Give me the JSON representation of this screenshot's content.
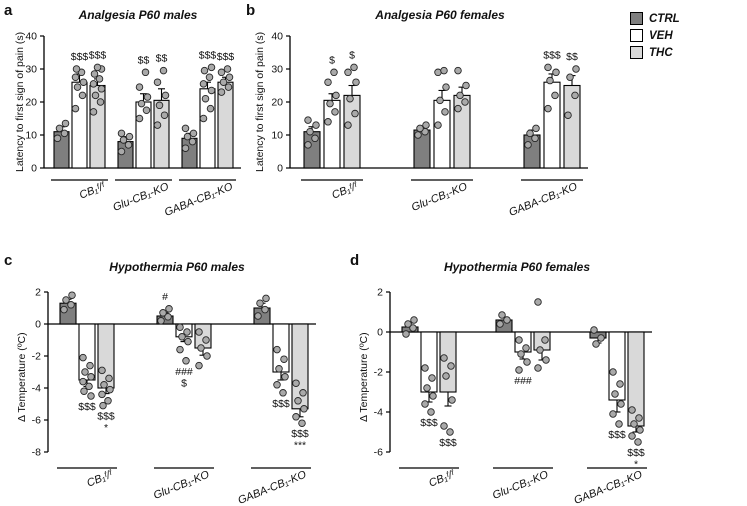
{
  "figure": {
    "background": "#ffffff"
  },
  "legend": {
    "items": [
      {
        "label": "CTRL",
        "color": "#7f7f7f"
      },
      {
        "label": "VEH",
        "color": "#ffffff"
      },
      {
        "label": "THC",
        "color": "#d9d9d9"
      }
    ]
  },
  "styles": {
    "point_fill": "#a9a9a9",
    "bar_stroke": "#000000",
    "axis_color": "#000000",
    "text_color": "#111111"
  },
  "chart_data": [
    {
      "panel_label": "a",
      "type": "bar",
      "title": "Analgesia P60 males",
      "ylabel": "Latency to first sign of pain (s)",
      "ylim": [
        0,
        40
      ],
      "yticks": [
        0,
        10,
        20,
        30,
        40
      ],
      "series": [
        "CTRL",
        "VEH",
        "THC"
      ],
      "groups": [
        {
          "label": "CB₁ᶠ/ᶠ",
          "bars": [
            {
              "series": "CTRL",
              "value": 11,
              "error": 1.5,
              "annotation": [],
              "points": [
                9,
                10.5,
                12,
                13.5
              ]
            },
            {
              "series": "VEH",
              "value": 26,
              "error": 2.5,
              "annotation": [
                "$$$"
              ],
              "points": [
                18,
                22,
                24.5,
                26,
                27.5,
                29,
                30
              ]
            },
            {
              "series": "THC",
              "value": 25,
              "error": 2,
              "annotation": [
                "$$$"
              ],
              "points": [
                17,
                20,
                22,
                24,
                25.5,
                27,
                28.5,
                30,
                30.5
              ]
            }
          ]
        },
        {
          "label": "Glu-CB₁-KO",
          "bars": [
            {
              "series": "CTRL",
              "value": 8,
              "error": 1.5,
              "annotation": [],
              "points": [
                5,
                7,
                8.5,
                9.5,
                10.5
              ]
            },
            {
              "series": "VEH",
              "value": 20,
              "error": 2.5,
              "annotation": [
                "$$"
              ],
              "points": [
                15,
                17.5,
                19.5,
                21.5,
                24.5,
                29
              ]
            },
            {
              "series": "THC",
              "value": 20.5,
              "error": 3.5,
              "annotation": [
                "$$"
              ],
              "points": [
                13,
                16,
                19,
                22,
                26,
                29.5
              ]
            }
          ]
        },
        {
          "label": "GABA-CB₁-KO",
          "bars": [
            {
              "series": "CTRL",
              "value": 9,
              "error": 1.5,
              "annotation": [],
              "points": [
                6,
                8,
                9.5,
                10.5,
                12
              ]
            },
            {
              "series": "VEH",
              "value": 24,
              "error": 2,
              "annotation": [
                "$$$"
              ],
              "points": [
                15,
                18,
                21,
                23.5,
                25.5,
                27.5,
                29.5,
                30.5
              ]
            },
            {
              "series": "THC",
              "value": 26,
              "error": 1.5,
              "annotation": [
                "$$$"
              ],
              "points": [
                23,
                24.5,
                26,
                27.5,
                29,
                30
              ]
            }
          ]
        }
      ]
    },
    {
      "panel_label": "b",
      "type": "bar",
      "title": "Analgesia P60 females",
      "ylabel": "Latency to first sign of pain (s)",
      "ylim": [
        0,
        40
      ],
      "yticks": [
        0,
        10,
        20,
        30,
        40
      ],
      "series": [
        "CTRL",
        "VEH",
        "THC"
      ],
      "groups": [
        {
          "label": "CB₁ᶠ/ᶠ",
          "bars": [
            {
              "series": "CTRL",
              "value": 11,
              "error": 1.5,
              "annotation": [],
              "points": [
                7,
                9,
                11,
                13,
                14.5
              ]
            },
            {
              "series": "VEH",
              "value": 20.5,
              "error": 2,
              "annotation": [
                "$"
              ],
              "points": [
                14,
                17,
                19.5,
                22,
                26,
                29
              ]
            },
            {
              "series": "THC",
              "value": 22,
              "error": 3,
              "annotation": [
                "$"
              ],
              "points": [
                13,
                16.5,
                21,
                26,
                29,
                30.5
              ]
            }
          ]
        },
        {
          "label": "Glu-CB₁-KO",
          "bars": [
            {
              "series": "CTRL",
              "value": 11.5,
              "error": 1,
              "annotation": [],
              "points": [
                10,
                11,
                12,
                13
              ]
            },
            {
              "series": "VEH",
              "value": 20.5,
              "error": 3,
              "annotation": [],
              "points": [
                13,
                17,
                20.5,
                24.5,
                29,
                29.5
              ]
            },
            {
              "series": "THC",
              "value": 22,
              "error": 2.5,
              "annotation": [],
              "points": [
                18,
                20,
                22,
                25,
                29.5
              ]
            }
          ]
        },
        {
          "label": "GABA-CB₁-KO",
          "bars": [
            {
              "series": "CTRL",
              "value": 10,
              "error": 1.5,
              "annotation": [],
              "points": [
                7,
                9,
                10.5,
                12
              ]
            },
            {
              "series": "VEH",
              "value": 26,
              "error": 2.5,
              "annotation": [
                "$$$"
              ],
              "points": [
                18,
                22,
                26.5,
                29,
                30.5
              ]
            },
            {
              "series": "THC",
              "value": 25,
              "error": 3,
              "annotation": [
                "$$"
              ],
              "points": [
                16,
                22,
                27.5,
                30
              ]
            }
          ]
        }
      ]
    },
    {
      "panel_label": "c",
      "type": "bar",
      "title": "Hypothermia P60 males",
      "ylabel": "Δ Temperature (ºC)",
      "ylim": [
        -8,
        2
      ],
      "yticks": [
        2,
        0,
        -2,
        -4,
        -6,
        -8
      ],
      "series": [
        "CTRL",
        "VEH",
        "THC"
      ],
      "groups": [
        {
          "label": "CB₁ᶠ/ᶠ",
          "bars": [
            {
              "series": "CTRL",
              "value": 1.3,
              "error": 0.25,
              "annotation": [],
              "points": [
                0.9,
                1.2,
                1.5,
                1.8
              ]
            },
            {
              "series": "VEH",
              "value": -3.5,
              "error": 0.4,
              "annotation": [
                "$$$"
              ],
              "points": [
                -2.1,
                -2.6,
                -3,
                -3.3,
                -3.6,
                -3.9,
                -4.2,
                -4.5
              ]
            },
            {
              "series": "THC",
              "value": -4,
              "error": 0.35,
              "annotation": [
                "$$$",
                "*"
              ],
              "points": [
                -2.9,
                -3.4,
                -3.8,
                -4.1,
                -4.4,
                -4.8,
                -5.1
              ]
            }
          ]
        },
        {
          "label": "Glu-CB₁-KO",
          "bars": [
            {
              "series": "CTRL",
              "value": 0.5,
              "error": 0.2,
              "annotation": [
                "#"
              ],
              "points": [
                0.2,
                0.45,
                0.7,
                0.95
              ]
            },
            {
              "series": "VEH",
              "value": -0.8,
              "error": 0.3,
              "annotation": [
                "###",
                "$"
              ],
              "points": [
                -0.2,
                -0.5,
                -0.8,
                -1.1,
                -1.6,
                -2.3
              ]
            },
            {
              "series": "THC",
              "value": -1.5,
              "error": 0.45,
              "annotation": [],
              "points": [
                -0.5,
                -1,
                -1.5,
                -2,
                -2.6
              ]
            }
          ]
        },
        {
          "label": "GABA-CB₁-KO",
          "bars": [
            {
              "series": "CTRL",
              "value": 1.0,
              "error": 0.3,
              "annotation": [],
              "points": [
                0.5,
                0.9,
                1.3,
                1.6
              ]
            },
            {
              "series": "VEH",
              "value": -3,
              "error": 0.5,
              "annotation": [
                "$$$"
              ],
              "points": [
                -1.6,
                -2.2,
                -2.8,
                -3.3,
                -3.8,
                -4.3
              ]
            },
            {
              "series": "THC",
              "value": -5.3,
              "error": 0.5,
              "annotation": [
                "$$$",
                "***"
              ],
              "points": [
                -3.7,
                -4.3,
                -4.8,
                -5.3,
                -5.8,
                -6.2
              ]
            }
          ]
        }
      ]
    },
    {
      "panel_label": "d",
      "type": "bar",
      "title": "Hypothermia P60 females",
      "ylabel": "Δ Temperature (ºC)",
      "ylim": [
        -6,
        2
      ],
      "yticks": [
        2,
        0,
        -2,
        -4,
        -6
      ],
      "series": [
        "CTRL",
        "VEH",
        "THC"
      ],
      "groups": [
        {
          "label": "CB₁ᶠ/ᶠ",
          "bars": [
            {
              "series": "CTRL",
              "value": 0.25,
              "error": 0.2,
              "annotation": [],
              "points": [
                -0.1,
                0.2,
                0.4,
                0.6
              ]
            },
            {
              "series": "VEH",
              "value": -3,
              "error": 0.5,
              "annotation": [
                "$$$"
              ],
              "points": [
                -1.8,
                -2.3,
                -2.8,
                -3.2,
                -3.6,
                -4
              ]
            },
            {
              "series": "THC",
              "value": -3,
              "error": 0.7,
              "annotation": [
                "$$$"
              ],
              "points": [
                -1.3,
                -1.7,
                -2.2,
                -3.4,
                -4.7,
                -5
              ]
            }
          ]
        },
        {
          "label": "Glu-CB₁-KO",
          "bars": [
            {
              "series": "CTRL",
              "value": 0.6,
              "error": 0.15,
              "annotation": [],
              "points": [
                0.4,
                0.6,
                0.85
              ]
            },
            {
              "series": "VEH",
              "value": -1,
              "error": 0.35,
              "annotation": [
                "###"
              ],
              "points": [
                -0.4,
                -0.8,
                -1.1,
                -1.5,
                -1.9
              ]
            },
            {
              "series": "THC",
              "value": -0.9,
              "error": 0.5,
              "annotation": [],
              "points": [
                1.5,
                -0.4,
                -0.9,
                -1.4,
                -1.8
              ]
            }
          ]
        },
        {
          "label": "GABA-CB₁-KO",
          "bars": [
            {
              "series": "CTRL",
              "value": -0.3,
              "error": 0.25,
              "annotation": [],
              "points": [
                0.1,
                -0.3,
                -0.6
              ]
            },
            {
              "series": "VEH",
              "value": -3.4,
              "error": 0.6,
              "annotation": [
                "$$$"
              ],
              "points": [
                -2,
                -2.6,
                -3.1,
                -3.6,
                -4.1,
                -4.6
              ]
            },
            {
              "series": "THC",
              "value": -4.7,
              "error": 0.3,
              "annotation": [
                "$$$",
                "*"
              ],
              "points": [
                -3.9,
                -4.3,
                -4.6,
                -4.9,
                -5.2,
                -5.5
              ]
            }
          ]
        }
      ]
    }
  ]
}
